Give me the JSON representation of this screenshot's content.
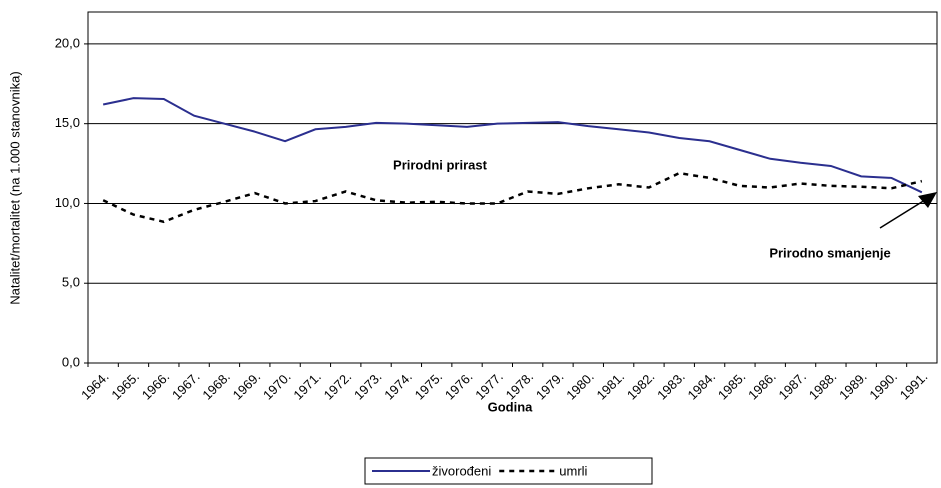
{
  "chart_data": {
    "type": "line",
    "x_label": "Godina",
    "y_label": "Natalitet/mortalitet (na 1.000 stanovnika)",
    "categories": [
      "1964.",
      "1965.",
      "1966.",
      "1967.",
      "1968.",
      "1969.",
      "1970.",
      "1971.",
      "1972.",
      "1973.",
      "1974.",
      "1975.",
      "1976.",
      "1977.",
      "1978.",
      "1979.",
      "1980.",
      "1981.",
      "1982.",
      "1983.",
      "1984.",
      "1985.",
      "1986.",
      "1987.",
      "1988.",
      "1989.",
      "1990.",
      "1991."
    ],
    "series": [
      {
        "name": "živorođeni",
        "color": "#2b2f8f",
        "dash": "solid",
        "values": [
          16.2,
          16.6,
          16.55,
          15.5,
          15.0,
          14.5,
          13.9,
          14.65,
          14.8,
          15.05,
          15.0,
          14.9,
          14.8,
          15.0,
          15.05,
          15.1,
          14.85,
          14.65,
          14.45,
          14.1,
          13.9,
          13.35,
          12.8,
          12.55,
          12.35,
          11.7,
          11.6,
          10.7
        ]
      },
      {
        "name": "umrli",
        "color": "#000000",
        "dash": "dashed",
        "values": [
          10.2,
          9.3,
          8.85,
          9.6,
          10.1,
          10.65,
          10.0,
          10.15,
          10.75,
          10.2,
          10.05,
          10.1,
          10.0,
          10.0,
          10.75,
          10.6,
          10.95,
          11.2,
          11.0,
          11.9,
          11.6,
          11.1,
          11.0,
          11.25,
          11.1,
          11.05,
          10.95,
          11.4
        ]
      }
    ],
    "ylim": [
      0,
      22
    ],
    "yticks": [
      {
        "value": 0,
        "label": "0,0"
      },
      {
        "value": 5,
        "label": "5,0"
      },
      {
        "value": 10,
        "label": "10,0"
      },
      {
        "value": 15,
        "label": "15,0"
      },
      {
        "value": 20,
        "label": "20,0"
      }
    ],
    "grid": true,
    "legend": "bottom",
    "annotations": [
      "Prirodni prirast",
      "Prirodno smanjenje"
    ]
  }
}
